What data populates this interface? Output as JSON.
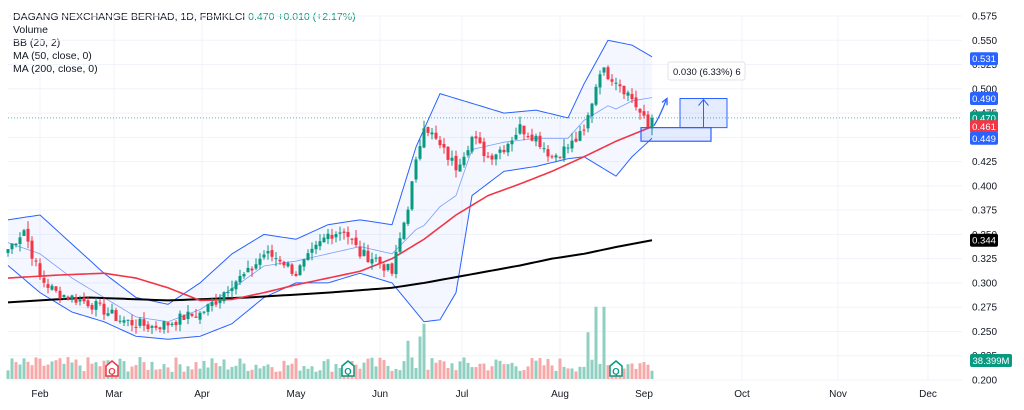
{
  "header": {
    "symbol": "DAGANG NEXCHANGE BERHAD, 1D, FBMKLCI",
    "last": "0.470",
    "change": "+0.010 (+2.17%)",
    "indicators": [
      "Volume",
      "BB (20, 2)",
      "MA (50, close, 0)",
      "MA (200, close, 0)"
    ]
  },
  "colors": {
    "up": "#089981",
    "down": "#f23645",
    "bb": "#2962ff",
    "ma50": "#f23645",
    "ma200": "#000000",
    "vol_up": "#8fd0c0",
    "vol_down": "#f7a9a9",
    "badge_red": "#f23645",
    "badge_green": "#089981",
    "projection": "#2962ff"
  },
  "chart_data": {
    "type": "candlestick",
    "x_axis": {
      "ticks": [
        "Feb",
        "Mar",
        "Apr",
        "May",
        "Jun",
        "Jul",
        "Aug",
        "Sep",
        "Oct",
        "Nov",
        "Dec"
      ]
    },
    "y_axis": {
      "range": [
        0.2,
        0.575
      ],
      "ticks": [
        "0.575",
        "0.550",
        "0.525",
        "0.500",
        "0.475",
        "0.450",
        "0.425",
        "0.400",
        "0.375",
        "0.350",
        "0.325",
        "0.300",
        "0.275",
        "0.250",
        "0.225",
        "0.200"
      ]
    },
    "price_labels": [
      {
        "text": "0.531",
        "value": 0.531,
        "color": "#2962ff"
      },
      {
        "text": "0.490",
        "value": 0.49,
        "color": "#2962ff"
      },
      {
        "text": "0.470",
        "value": 0.47,
        "color": "#089981"
      },
      {
        "text": "0.461",
        "value": 0.461,
        "color": "#f23645"
      },
      {
        "text": "0.449",
        "value": 0.449,
        "color": "#2962ff"
      },
      {
        "text": "0.344",
        "value": 0.344,
        "color": "#000000"
      }
    ],
    "volume_label": {
      "text": "38.399M",
      "color": "#089981"
    },
    "badges": [
      {
        "text": "Q",
        "date_index": 26,
        "color": "#f23645"
      },
      {
        "text": "Q",
        "date_index": 85,
        "color": "#089981"
      },
      {
        "text": "Q",
        "date_index": 152,
        "color": "#089981"
      }
    ],
    "projection": {
      "label": "0.030 (6.33%) 6",
      "from": 0.46,
      "to": 0.49,
      "support_low": 0.446,
      "support_high": 0.46
    },
    "anchors": {
      "close": [
        [
          0,
          0.335
        ],
        [
          4,
          0.355
        ],
        [
          8,
          0.305
        ],
        [
          12,
          0.29
        ],
        [
          16,
          0.285
        ],
        [
          20,
          0.28
        ],
        [
          24,
          0.272
        ],
        [
          28,
          0.262
        ],
        [
          32,
          0.258
        ],
        [
          36,
          0.255
        ],
        [
          40,
          0.258
        ],
        [
          44,
          0.265
        ],
        [
          48,
          0.268
        ],
        [
          52,
          0.282
        ],
        [
          56,
          0.3
        ],
        [
          60,
          0.31
        ],
        [
          64,
          0.33
        ],
        [
          68,
          0.325
        ],
        [
          72,
          0.31
        ],
        [
          76,
          0.33
        ],
        [
          80,
          0.35
        ],
        [
          84,
          0.355
        ],
        [
          88,
          0.33
        ],
        [
          92,
          0.325
        ],
        [
          96,
          0.31
        ],
        [
          100,
          0.38
        ],
        [
          104,
          0.465
        ],
        [
          108,
          0.44
        ],
        [
          112,
          0.42
        ],
        [
          116,
          0.45
        ],
        [
          120,
          0.43
        ],
        [
          124,
          0.44
        ],
        [
          128,
          0.46
        ],
        [
          132,
          0.45
        ],
        [
          136,
          0.43
        ],
        [
          140,
          0.44
        ],
        [
          144,
          0.455
        ],
        [
          148,
          0.52
        ],
        [
          152,
          0.51
        ],
        [
          156,
          0.49
        ],
        [
          160,
          0.46
        ],
        [
          161,
          0.47
        ]
      ],
      "bb_upper": [
        [
          0,
          0.365
        ],
        [
          8,
          0.37
        ],
        [
          16,
          0.34
        ],
        [
          24,
          0.31
        ],
        [
          32,
          0.285
        ],
        [
          40,
          0.278
        ],
        [
          48,
          0.3
        ],
        [
          56,
          0.33
        ],
        [
          64,
          0.35
        ],
        [
          72,
          0.345
        ],
        [
          80,
          0.36
        ],
        [
          88,
          0.365
        ],
        [
          96,
          0.36
        ],
        [
          102,
          0.44
        ],
        [
          108,
          0.495
        ],
        [
          116,
          0.485
        ],
        [
          124,
          0.475
        ],
        [
          132,
          0.478
        ],
        [
          140,
          0.47
        ],
        [
          144,
          0.505
        ],
        [
          150,
          0.55
        ],
        [
          156,
          0.545
        ],
        [
          161,
          0.533
        ]
      ],
      "bb_lower": [
        [
          0,
          0.318
        ],
        [
          8,
          0.29
        ],
        [
          16,
          0.27
        ],
        [
          24,
          0.26
        ],
        [
          32,
          0.245
        ],
        [
          40,
          0.242
        ],
        [
          48,
          0.245
        ],
        [
          56,
          0.258
        ],
        [
          64,
          0.285
        ],
        [
          72,
          0.3
        ],
        [
          80,
          0.3
        ],
        [
          88,
          0.31
        ],
        [
          96,
          0.3
        ],
        [
          104,
          0.26
        ],
        [
          108,
          0.262
        ],
        [
          112,
          0.29
        ],
        [
          116,
          0.39
        ],
        [
          124,
          0.415
        ],
        [
          132,
          0.42
        ],
        [
          140,
          0.428
        ],
        [
          144,
          0.43
        ],
        [
          148,
          0.42
        ],
        [
          152,
          0.41
        ],
        [
          156,
          0.43
        ],
        [
          161,
          0.449
        ]
      ],
      "ma50": [
        [
          0,
          0.305
        ],
        [
          12,
          0.308
        ],
        [
          24,
          0.31
        ],
        [
          32,
          0.305
        ],
        [
          40,
          0.295
        ],
        [
          48,
          0.282
        ],
        [
          56,
          0.283
        ],
        [
          64,
          0.29
        ],
        [
          72,
          0.298
        ],
        [
          80,
          0.305
        ],
        [
          88,
          0.312
        ],
        [
          96,
          0.325
        ],
        [
          104,
          0.345
        ],
        [
          112,
          0.37
        ],
        [
          120,
          0.39
        ],
        [
          128,
          0.402
        ],
        [
          136,
          0.415
        ],
        [
          144,
          0.43
        ],
        [
          152,
          0.446
        ],
        [
          161,
          0.461
        ]
      ],
      "ma200": [
        [
          0,
          0.28
        ],
        [
          20,
          0.285
        ],
        [
          40,
          0.282
        ],
        [
          60,
          0.285
        ],
        [
          80,
          0.29
        ],
        [
          96,
          0.295
        ],
        [
          104,
          0.3
        ],
        [
          112,
          0.306
        ],
        [
          120,
          0.312
        ],
        [
          128,
          0.318
        ],
        [
          136,
          0.325
        ],
        [
          144,
          0.33
        ],
        [
          152,
          0.337
        ],
        [
          161,
          0.344
        ]
      ]
    },
    "volume_spikes": [
      [
        100,
        0.45
      ],
      [
        103,
        0.5
      ],
      [
        104,
        0.65
      ],
      [
        145,
        0.55
      ],
      [
        147,
        0.85
      ],
      [
        149,
        0.85
      ]
    ]
  }
}
